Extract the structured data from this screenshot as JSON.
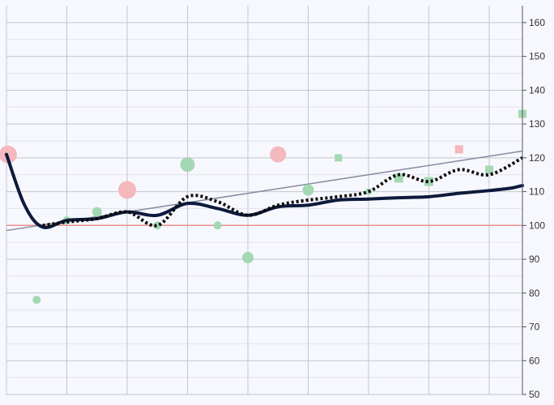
{
  "chart_data": {
    "type": "line",
    "title": "",
    "xlabel": "",
    "ylabel": "",
    "x_range": [
      0,
      17.1
    ],
    "ylim": [
      50,
      165
    ],
    "y_ticks": [
      "50",
      "60",
      "70",
      "80",
      "90",
      "100",
      "110",
      "120",
      "130",
      "140",
      "150",
      "160"
    ],
    "y_axis_side": "right",
    "grid": true,
    "legend": "none",
    "reference_line": {
      "y": 100,
      "color": "#e8908f"
    },
    "trend_line": {
      "x": [
        0,
        17.1
      ],
      "y": [
        98.5,
        122
      ],
      "color": "#858a9e"
    },
    "series": [
      {
        "style": "solid",
        "color": "#0d1a3d",
        "x": [
          0,
          0.6,
          1.2,
          2,
          3,
          4,
          5,
          6,
          7,
          8,
          9,
          10,
          11,
          12,
          13,
          14,
          15,
          16,
          16.7,
          17.1
        ],
        "y": [
          121,
          106,
          99.5,
          101.5,
          102,
          104,
          103,
          106.5,
          105,
          103,
          105.5,
          106,
          107.5,
          107.8,
          108.2,
          108.5,
          109.5,
          110.3,
          111,
          111.8
        ]
      },
      {
        "style": "dotted",
        "color": "#0a0a0a",
        "x": [
          1.2,
          2,
          3,
          4,
          5,
          6,
          7,
          8,
          9,
          10,
          11,
          12,
          13,
          14,
          15,
          16,
          17.1
        ],
        "y": [
          100,
          101,
          102,
          104,
          100,
          108.5,
          107,
          103,
          106,
          107.5,
          108.5,
          110,
          115,
          113,
          116.5,
          115,
          120
        ]
      }
    ],
    "markers": [
      {
        "shape": "circle",
        "color": "#f4b8bd",
        "x": 0.05,
        "y": 121,
        "size": 11
      },
      {
        "shape": "circle",
        "color": "#f4b8bd",
        "x": 4,
        "y": 110.5,
        "size": 11
      },
      {
        "shape": "circle",
        "color": "#f4b8bd",
        "x": 9,
        "y": 121,
        "size": 10
      },
      {
        "shape": "circle",
        "color": "#a3d8b2",
        "x": 1,
        "y": 78,
        "size": 5
      },
      {
        "shape": "circle",
        "color": "#a3d8b2",
        "x": 2,
        "y": 101.5,
        "size": 5
      },
      {
        "shape": "circle",
        "color": "#a3d8b2",
        "x": 3,
        "y": 104,
        "size": 6
      },
      {
        "shape": "circle",
        "color": "#a3d8b2",
        "x": 5,
        "y": 100,
        "size": 5
      },
      {
        "shape": "circle",
        "color": "#a3d8b2",
        "x": 6,
        "y": 118,
        "size": 9
      },
      {
        "shape": "circle",
        "color": "#a3d8b2",
        "x": 7,
        "y": 100,
        "size": 5
      },
      {
        "shape": "circle",
        "color": "#a3d8b2",
        "x": 8,
        "y": 90.5,
        "size": 7
      },
      {
        "shape": "circle",
        "color": "#a3d8b2",
        "x": 10,
        "y": 110.5,
        "size": 7
      },
      {
        "shape": "square",
        "color": "#a3d8b2",
        "x": 11,
        "y": 120,
        "size": 9
      },
      {
        "shape": "square",
        "color": "#a3d8b2",
        "x": 12,
        "y": 110,
        "size": 7
      },
      {
        "shape": "square",
        "color": "#a3d8b2",
        "x": 13,
        "y": 114,
        "size": 11
      },
      {
        "shape": "square",
        "color": "#a3d8b2",
        "x": 14,
        "y": 113,
        "size": 11
      },
      {
        "shape": "square",
        "color": "#f4b8bd",
        "x": 15,
        "y": 122.5,
        "size": 10
      },
      {
        "shape": "square",
        "color": "#a3d8b2",
        "x": 16,
        "y": 116.5,
        "size": 10
      },
      {
        "shape": "square",
        "color": "#a3d8b2",
        "x": 17.1,
        "y": 133,
        "size": 10
      }
    ],
    "colors": {
      "background": "#f7f8fe",
      "grid_major": "#c4c6cd",
      "grid_minor": "#e1e2e8",
      "axis": "#555555"
    }
  }
}
